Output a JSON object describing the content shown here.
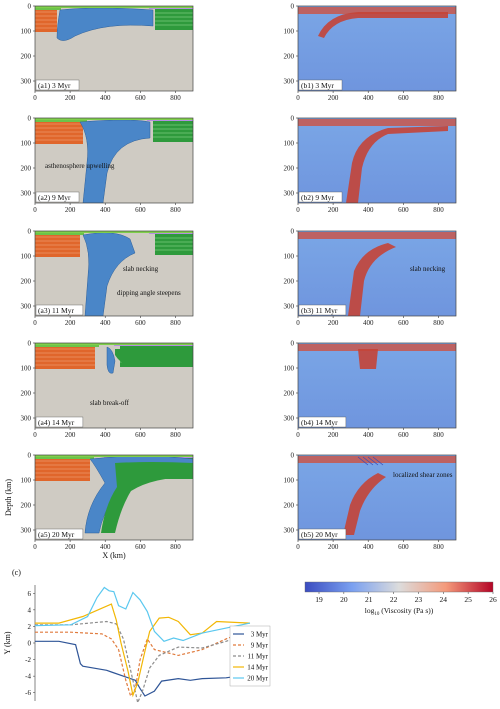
{
  "panels": [
    {
      "id": "a1",
      "label": "(a1) 3 Myr",
      "note": ""
    },
    {
      "id": "b1",
      "label": "(b1) 3 Myr",
      "note": ""
    },
    {
      "id": "a2",
      "label": "(a2) 9 Myr",
      "note": "asthenosphere upwelling"
    },
    {
      "id": "b2",
      "label": "(b2) 9 Myr",
      "note": ""
    },
    {
      "id": "a3",
      "label": "(a3) 11 Myr",
      "note": "slab necking",
      "note2": "dipping angle steepens"
    },
    {
      "id": "b3",
      "label": "(b3) 11 Myr",
      "note": "slab necking"
    },
    {
      "id": "a4",
      "label": "(a4) 14 Myr",
      "note": "slab break-off"
    },
    {
      "id": "b4",
      "label": "(b4) 14 Myr",
      "note": ""
    },
    {
      "id": "a5",
      "label": "(a5) 20 Myr",
      "note": ""
    },
    {
      "id": "b5",
      "label": "(b5) 20 Myr",
      "note": "localized shear zones"
    }
  ],
  "axes": {
    "x_ticks": [
      "0",
      "200",
      "400",
      "600",
      "800"
    ],
    "y_ticks": [
      "0",
      "100",
      "200",
      "300"
    ],
    "xlabel": "X (km)",
    "ylabel": "Depth (km)"
  },
  "colorbar": {
    "ticks": [
      "19",
      "20",
      "21",
      "22",
      "23",
      "24",
      "25",
      "26"
    ],
    "label_prefix": "log",
    "label_sub": "10",
    "label_suffix": " (Viscosity (Pa s))",
    "colors": [
      "#3b4cc0",
      "#9bbcff",
      "#dddddd",
      "#f6a385",
      "#b40426"
    ]
  },
  "chart_c": {
    "label": "(c)",
    "ylabel": "Y (km)",
    "y_ticks": [
      "6",
      "4",
      "2",
      "0",
      "-2",
      "-4",
      "-6"
    ],
    "x_ticks": [
      "0",
      "200",
      "400",
      "600",
      "800"
    ]
  },
  "chart_data": {
    "type": "line",
    "xlabel": "",
    "ylabel": "Y (km)",
    "xlim": [
      0,
      900
    ],
    "ylim": [
      -7,
      7
    ],
    "series": [
      {
        "name": "3 Myr",
        "color": "#2f5597",
        "dash": "solid",
        "points": [
          [
            0,
            0.2
          ],
          [
            100,
            0.2
          ],
          [
            170,
            -0.2
          ],
          [
            190,
            -2.5
          ],
          [
            200,
            -2.8
          ],
          [
            300,
            -3.3
          ],
          [
            320,
            -3.5
          ],
          [
            420,
            -4.5
          ],
          [
            440,
            -5.5
          ],
          [
            460,
            -6.4
          ],
          [
            500,
            -5.8
          ],
          [
            530,
            -4.6
          ],
          [
            600,
            -4.3
          ],
          [
            650,
            -4.5
          ],
          [
            700,
            -4.3
          ],
          [
            800,
            -4.2
          ],
          [
            900,
            -3.8
          ]
        ]
      },
      {
        "name": "9 Myr",
        "color": "#e07a3c",
        "dash": "dash",
        "points": [
          [
            0,
            1.3
          ],
          [
            150,
            1.3
          ],
          [
            280,
            1.1
          ],
          [
            320,
            0.5
          ],
          [
            350,
            -0.8
          ],
          [
            380,
            -4.5
          ],
          [
            400,
            -6.4
          ],
          [
            420,
            -5.5
          ],
          [
            440,
            -2.0
          ],
          [
            470,
            0.5
          ],
          [
            500,
            -0.8
          ],
          [
            600,
            -1.5
          ],
          [
            700,
            -0.8
          ],
          [
            800,
            0.5
          ],
          [
            900,
            1.6
          ]
        ]
      },
      {
        "name": "11 Myr",
        "color": "#8c8c8c",
        "dash": "dash",
        "points": [
          [
            0,
            2.2
          ],
          [
            150,
            2.2
          ],
          [
            300,
            2.6
          ],
          [
            340,
            2.3
          ],
          [
            370,
            0.5
          ],
          [
            410,
            -4.5
          ],
          [
            430,
            -7.2
          ],
          [
            450,
            -5.8
          ],
          [
            480,
            -3.0
          ],
          [
            520,
            -1.5
          ],
          [
            600,
            -0.5
          ],
          [
            700,
            -0.6
          ],
          [
            800,
            0.2
          ],
          [
            900,
            1.2
          ]
        ]
      },
      {
        "name": "14 Myr",
        "color": "#f2b705",
        "dash": "solid",
        "points": [
          [
            0,
            2.4
          ],
          [
            100,
            2.4
          ],
          [
            200,
            3.2
          ],
          [
            280,
            4.2
          ],
          [
            320,
            4.7
          ],
          [
            340,
            2.8
          ],
          [
            360,
            0.0
          ],
          [
            390,
            -3.5
          ],
          [
            410,
            -6.3
          ],
          [
            430,
            -4.8
          ],
          [
            460,
            -1.0
          ],
          [
            480,
            1.4
          ],
          [
            520,
            3.0
          ],
          [
            560,
            3.1
          ],
          [
            600,
            2.6
          ],
          [
            650,
            1.0
          ],
          [
            700,
            1.2
          ],
          [
            760,
            2.6
          ],
          [
            900,
            2.4
          ]
        ]
      },
      {
        "name": "20 Myr",
        "color": "#5bc8ef",
        "dash": "solid",
        "points": [
          [
            0,
            2.1
          ],
          [
            150,
            2.2
          ],
          [
            220,
            3.2
          ],
          [
            260,
            5.5
          ],
          [
            290,
            6.7
          ],
          [
            310,
            6.3
          ],
          [
            330,
            6.2
          ],
          [
            350,
            4.5
          ],
          [
            380,
            4.1
          ],
          [
            410,
            6.1
          ],
          [
            440,
            5.2
          ],
          [
            470,
            3.8
          ],
          [
            500,
            1.4
          ],
          [
            540,
            0.2
          ],
          [
            580,
            0.6
          ],
          [
            620,
            0.3
          ],
          [
            700,
            1.2
          ],
          [
            800,
            1.8
          ],
          [
            900,
            2.4
          ]
        ]
      }
    ]
  }
}
